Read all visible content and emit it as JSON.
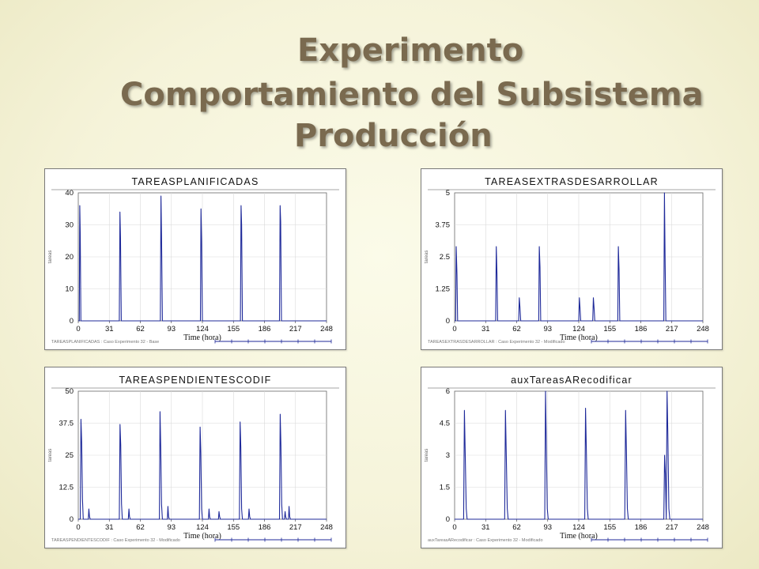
{
  "slide": {
    "title_line1": "Experimento",
    "title_line2": "Comportamiento del  Subsistema",
    "title_line3": "Producción"
  },
  "colors": {
    "series": "#1f2a9a",
    "grid": "#d9d9d9",
    "title_text": "#7a6a4f"
  },
  "chart_data": [
    {
      "type": "line",
      "title": "TAREASPLANIFICADAS",
      "xlabel": "Time (hora)",
      "ylabel": "tareas",
      "xlim": [
        0,
        248
      ],
      "ylim": [
        0,
        40
      ],
      "xticks": [
        "0",
        "31",
        "62",
        "93",
        "124",
        "155",
        "186",
        "217",
        "248"
      ],
      "yticks": [
        "0",
        "10",
        "20",
        "30",
        "40"
      ],
      "footer": "TAREASPLANIFICADAS : Caso Experimento 32 - Base",
      "grid": true,
      "series": [
        {
          "x": [
            0,
            1,
            1.5,
            2,
            2.6,
            3,
            40,
            41,
            41.6,
            42.2,
            43,
            81,
            82,
            82.6,
            83.2,
            84,
            121,
            122,
            122.6,
            123.2,
            124,
            161,
            162,
            162.6,
            163.2,
            164,
            200,
            201,
            201.6,
            202.2,
            203,
            248
          ],
          "y": [
            0,
            0,
            36,
            27,
            0,
            0,
            0,
            0,
            34,
            26,
            0,
            0,
            0,
            39,
            27,
            0,
            0,
            0,
            35,
            25,
            0,
            0,
            0,
            36,
            30,
            0,
            0,
            0,
            36,
            31,
            0,
            0
          ]
        }
      ]
    },
    {
      "type": "line",
      "title": "TAREASEXTRASDESARROLLAR",
      "xlabel": "Time (hora)",
      "ylabel": "tareas",
      "xlim": [
        0,
        248
      ],
      "ylim": [
        0,
        5
      ],
      "xticks": [
        "0",
        "31",
        "62",
        "93",
        "124",
        "155",
        "186",
        "217",
        "248"
      ],
      "yticks": [
        "0",
        "1.25",
        "2.5",
        "3.75",
        "5"
      ],
      "footer": "TAREASEXTRASDESARROLLAR : Caso Experimento 32 - Modificado",
      "grid": true,
      "series": [
        {
          "x": [
            0,
            1,
            1.6,
            2.4,
            3,
            40,
            41,
            41.6,
            42.3,
            43,
            63,
            64,
            64.6,
            65.3,
            66,
            83,
            84,
            84.6,
            85.3,
            86,
            123,
            124,
            124.6,
            125.3,
            126,
            137,
            138,
            138.6,
            139.3,
            140,
            162,
            163,
            163.6,
            164.3,
            165,
            208,
            209,
            209.6,
            210.3,
            211,
            248
          ],
          "y": [
            0,
            0,
            2.9,
            1.8,
            0,
            0,
            0,
            2.9,
            1.8,
            0,
            0,
            0,
            0.9,
            0.5,
            0,
            0,
            0,
            2.9,
            2.1,
            0,
            0,
            0,
            0.9,
            0.5,
            0,
            0,
            0,
            0.9,
            0.5,
            0,
            0,
            0,
            2.9,
            2.0,
            0,
            0,
            0,
            5.0,
            2.2,
            0,
            0
          ]
        }
      ]
    },
    {
      "type": "line",
      "title": "TAREASPENDIENTESCODIF",
      "xlabel": "Time (hora)",
      "ylabel": "tareas",
      "xlim": [
        0,
        248
      ],
      "ylim": [
        0,
        50
      ],
      "xticks": [
        "0",
        "31",
        "62",
        "93",
        "124",
        "155",
        "186",
        "217",
        "248"
      ],
      "yticks": [
        "0",
        "12.5",
        "25",
        "37.5",
        "50"
      ],
      "footer": "TAREASPENDIENTESCODIF : Caso Experimento 32 - Modificado",
      "grid": true,
      "series": [
        {
          "x": [
            0,
            2,
            2.7,
            3.4,
            4.2,
            5,
            10,
            10.6,
            11.2,
            12,
            41,
            41.7,
            42.4,
            43.2,
            44,
            50,
            50.6,
            51.2,
            52,
            81,
            81.7,
            82.4,
            83.2,
            84,
            89,
            89.6,
            90.2,
            91,
            121,
            121.7,
            122.4,
            123.2,
            124,
            130,
            130.6,
            131.2,
            132,
            140,
            140.6,
            141.2,
            142,
            161,
            161.7,
            162.4,
            163.2,
            164,
            170,
            170.6,
            171.2,
            172,
            201,
            201.7,
            202.4,
            203.2,
            204,
            206,
            206.6,
            207.2,
            208,
            210,
            210.6,
            211.2,
            212,
            248
          ],
          "y": [
            0,
            0,
            39,
            30,
            8,
            0,
            0,
            4,
            1,
            0,
            0,
            37,
            29,
            6,
            0,
            0,
            4,
            1,
            0,
            0,
            42,
            28,
            6,
            0,
            0,
            5,
            1,
            0,
            0,
            36,
            26,
            4,
            0,
            0,
            4,
            1,
            0,
            0,
            3,
            1,
            0,
            0,
            38,
            28,
            4,
            0,
            0,
            4,
            1,
            0,
            0,
            41,
            29,
            6,
            0,
            0,
            3,
            1,
            0,
            0,
            5,
            1,
            0,
            0
          ]
        }
      ]
    },
    {
      "type": "line",
      "title": "auxTareasARecodificar",
      "xlabel": "Time (hora)",
      "ylabel": "tareas",
      "xlim": [
        0,
        248
      ],
      "ylim": [
        0,
        6
      ],
      "xticks": [
        "0",
        "31",
        "62",
        "93",
        "124",
        "155",
        "186",
        "217",
        "248"
      ],
      "yticks": [
        "0",
        "1.5",
        "3",
        "4.5",
        "6"
      ],
      "footer": "auxTareasARecodificar : Caso Experimento 32 - Modificado",
      "grid": true,
      "series": [
        {
          "x": [
            0,
            9,
            9.8,
            10.6,
            11.6,
            12.5,
            50,
            50.8,
            51.6,
            52.6,
            53.5,
            90,
            90.8,
            91.6,
            92.6,
            93.5,
            130,
            130.8,
            131.6,
            132.6,
            133.5,
            170,
            170.8,
            171.6,
            172.6,
            173.5,
            209,
            209.8,
            210.6,
            211.4,
            212.2,
            213,
            214,
            215,
            248
          ],
          "y": [
            0,
            0,
            5.1,
            3.1,
            0.5,
            0,
            0,
            5.1,
            3.1,
            0.5,
            0,
            0,
            6.0,
            3.5,
            0.5,
            0,
            0,
            5.2,
            3.3,
            0.5,
            0,
            0,
            5.1,
            3.2,
            0.5,
            0,
            0,
            3.0,
            2.1,
            0,
            6.0,
            4.0,
            0.5,
            0,
            0
          ]
        }
      ]
    }
  ]
}
